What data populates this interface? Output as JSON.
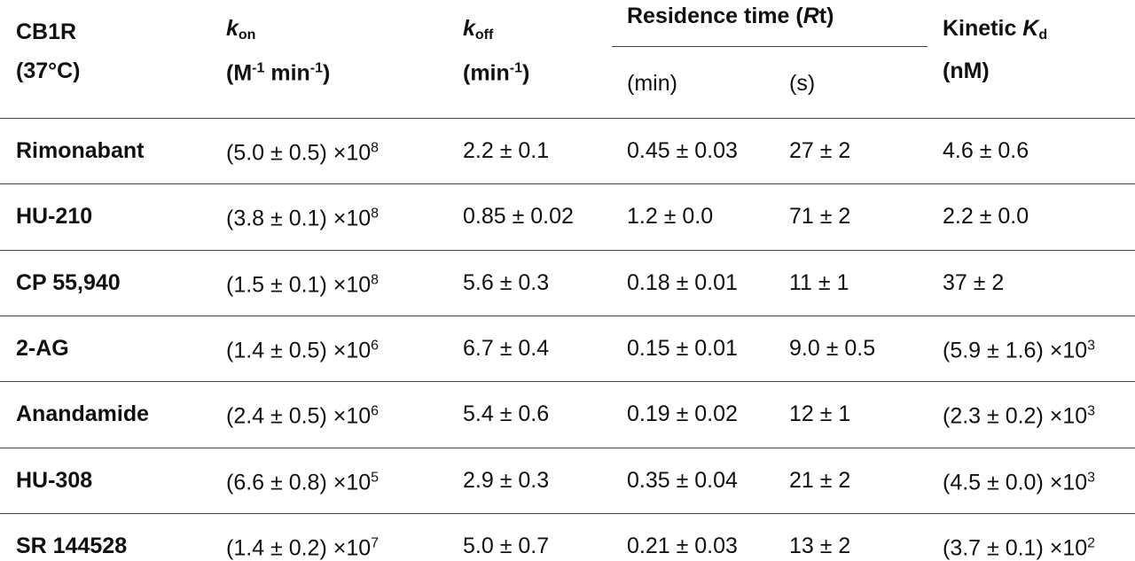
{
  "table": {
    "header": {
      "columns": [
        {
          "lines": [
            [
              {
                "text": "CB1R"
              }
            ],
            [
              {
                "text": "(37°C)"
              }
            ]
          ]
        },
        {
          "lines": [
            [
              {
                "text": "k",
                "style": "italic"
              },
              {
                "text": "on",
                "style": "sub"
              }
            ],
            [
              {
                "text": "(M"
              },
              {
                "text": "-1",
                "style": "sup"
              },
              {
                "text": " min"
              },
              {
                "text": "-1",
                "style": "sup"
              },
              {
                "text": ")"
              }
            ]
          ]
        },
        {
          "lines": [
            [
              {
                "text": "k",
                "style": "italic"
              },
              {
                "text": "off",
                "style": "sub"
              }
            ],
            [
              {
                "text": "(min"
              },
              {
                "text": "-1",
                "style": "sup"
              },
              {
                "text": ")"
              }
            ]
          ]
        },
        {
          "lines": [
            [
              {
                "text": "Kinetic "
              },
              {
                "text": "K",
                "style": "italic"
              },
              {
                "text": "d",
                "style": "sub"
              }
            ],
            [
              {
                "text": "(nM)"
              }
            ]
          ]
        }
      ],
      "group": {
        "label": [
          {
            "text": "Residence time ("
          },
          {
            "text": "R",
            "style": "italic"
          },
          {
            "text": "t)"
          }
        ],
        "subcolumns": [
          "(min)",
          "(s)"
        ]
      }
    },
    "rows": [
      [
        "Rimonabant",
        [
          {
            "text": "(5.0 ± 0.5) ×10"
          },
          {
            "text": "8",
            "style": "sup"
          }
        ],
        "2.2 ± 0.1",
        "0.45 ± 0.03",
        "27 ± 2",
        "4.6 ± 0.6"
      ],
      [
        "HU-210",
        [
          {
            "text": "(3.8 ± 0.1) ×10"
          },
          {
            "text": "8",
            "style": "sup"
          }
        ],
        "0.85 ± 0.02",
        "1.2 ± 0.0",
        "71 ± 2",
        "2.2 ± 0.0"
      ],
      [
        "CP 55,940",
        [
          {
            "text": "(1.5 ± 0.1) ×10"
          },
          {
            "text": "8",
            "style": "sup"
          }
        ],
        "5.6 ± 0.3",
        "0.18 ± 0.01",
        "11 ± 1",
        "37 ± 2"
      ],
      [
        "2-AG",
        [
          {
            "text": "(1.4 ± 0.5) ×10"
          },
          {
            "text": "6",
            "style": "sup"
          }
        ],
        "6.7 ± 0.4",
        "0.15 ± 0.01",
        "9.0 ± 0.5",
        [
          {
            "text": "(5.9 ± 1.6) ×10"
          },
          {
            "text": "3",
            "style": "sup"
          }
        ]
      ],
      [
        "Anandamide",
        [
          {
            "text": "(2.4 ± 0.5) ×10"
          },
          {
            "text": "6",
            "style": "sup"
          }
        ],
        "5.4 ± 0.6",
        "0.19 ± 0.02",
        "12 ± 1",
        [
          {
            "text": "(2.3 ± 0.2) ×10"
          },
          {
            "text": "3",
            "style": "sup"
          }
        ]
      ],
      [
        "HU-308",
        [
          {
            "text": "(6.6 ± 0.8) ×10"
          },
          {
            "text": "5",
            "style": "sup"
          }
        ],
        "2.9 ± 0.3",
        "0.35 ± 0.04",
        "21 ± 2",
        [
          {
            "text": "(4.5 ± 0.0) ×10"
          },
          {
            "text": "3",
            "style": "sup"
          }
        ]
      ],
      [
        "SR 144528",
        [
          {
            "text": "(1.4 ± 0.2) ×10"
          },
          {
            "text": "7",
            "style": "sup"
          }
        ],
        "5.0 ± 0.7",
        "0.21 ± 0.03",
        "13 ± 2",
        [
          {
            "text": "(3.7 ± 0.1) ×10"
          },
          {
            "text": "2",
            "style": "sup"
          }
        ]
      ]
    ]
  }
}
